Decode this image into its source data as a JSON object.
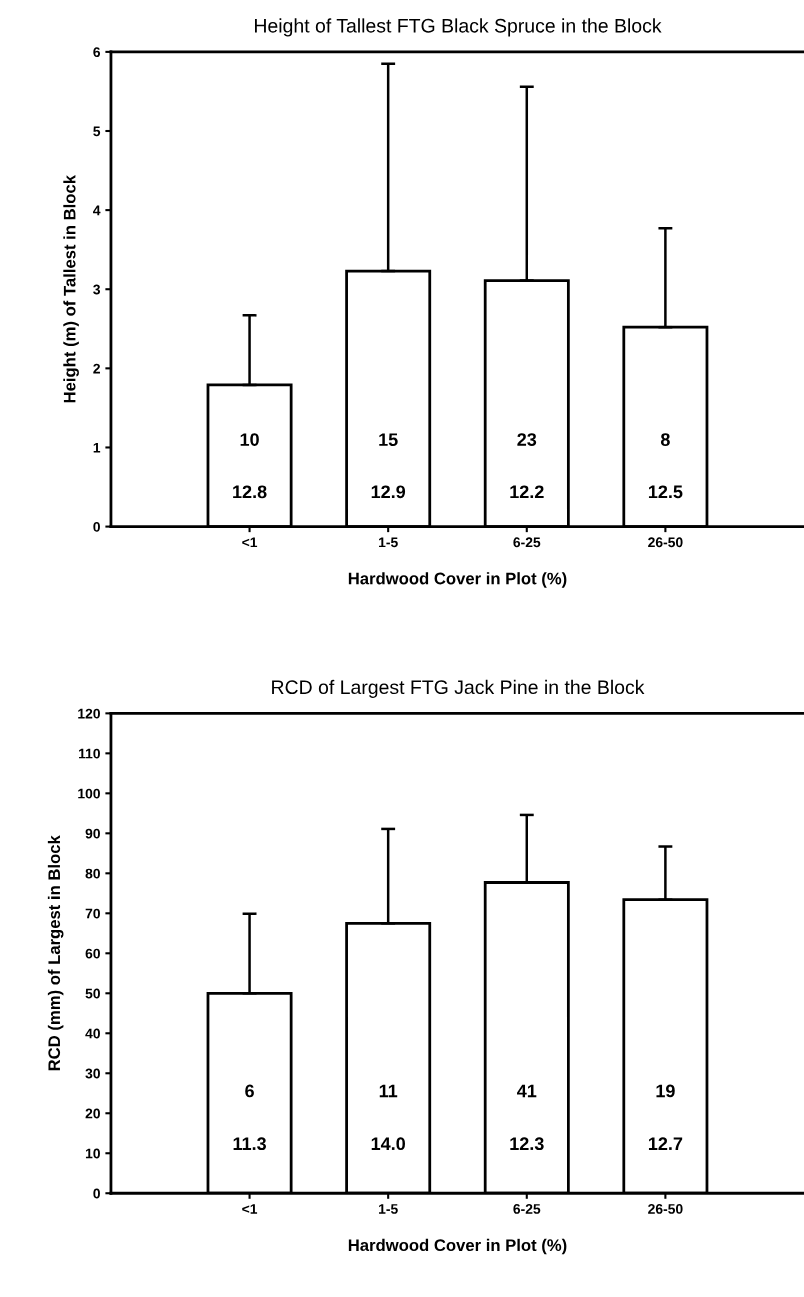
{
  "chart_data": [
    {
      "type": "bar",
      "title": "Height of Tallest FTG Black Spruce in the Block",
      "xlabel": "Hardwood Cover in Plot (%)",
      "ylabel": "Height (m) of Tallest in Block",
      "categories": [
        "<1",
        "1-5",
        "6-25",
        "26-50"
      ],
      "values": [
        1.79,
        3.23,
        3.11,
        2.52
      ],
      "errors": [
        [
          1.79,
          2.67
        ],
        [
          3.23,
          5.85
        ],
        [
          3.11,
          5.56
        ],
        [
          2.52,
          3.77
        ]
      ],
      "color": "#ffffff",
      "ylim": [
        0,
        6
      ],
      "yticks": [
        0,
        1,
        2,
        3,
        4,
        5,
        6
      ],
      "grid": false,
      "legend": false,
      "annotations": [
        "10",
        "15",
        "23",
        "8",
        "12.8",
        "12.9",
        "12.2",
        "12.5"
      ]
    },
    {
      "type": "bar",
      "title": "RCD of Largest FTG Jack Pine in the Block",
      "xlabel": "Hardwood Cover in Plot (%)",
      "ylabel": "RCD (mm) of Largest in Block",
      "categories": [
        "<1",
        "1-5",
        "6-25",
        "26-50"
      ],
      "values": [
        50.0,
        67.5,
        77.7,
        73.4
      ],
      "errors": [
        [
          50.0,
          69.9
        ],
        [
          67.5,
          91.1
        ],
        [
          77.7,
          94.6
        ],
        [
          73.4,
          86.7
        ]
      ],
      "color": "#ffffff",
      "ylim": [
        0,
        120
      ],
      "yticks": [
        0,
        10,
        20,
        30,
        40,
        50,
        60,
        70,
        80,
        90,
        100,
        110,
        120
      ],
      "grid": false,
      "legend": false,
      "annotations": [
        "6",
        "11",
        "41",
        "19",
        "11.3",
        "14.0",
        "12.3",
        "12.7"
      ]
    }
  ]
}
